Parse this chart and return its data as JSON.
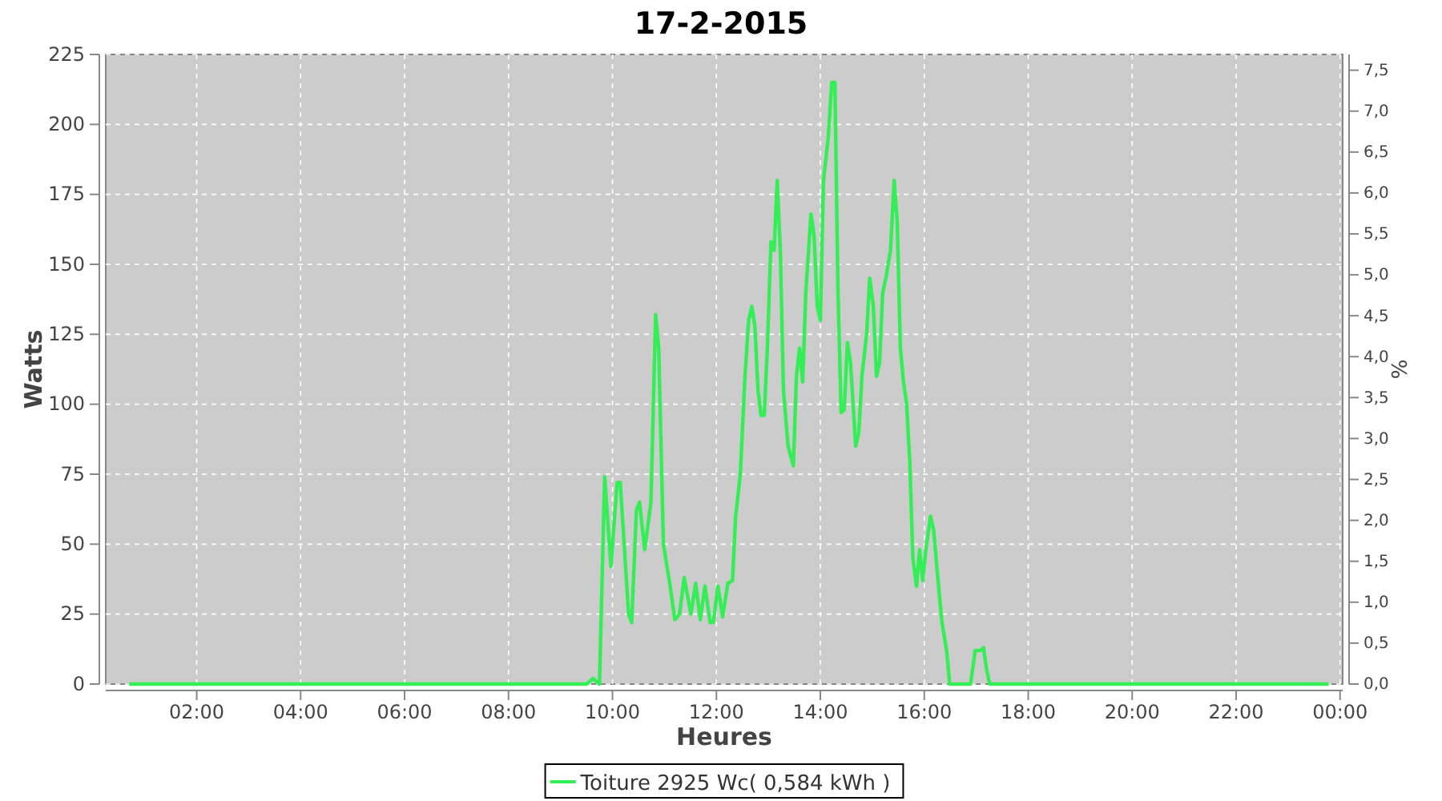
{
  "chart_data": {
    "type": "line",
    "title": "17-2-2015",
    "xlabel": "Heures",
    "ylabel": "Watts",
    "y2label": "%",
    "xlim": [
      0.25,
      24.05
    ],
    "xticks": [
      {
        "value": 2,
        "label": "02:00"
      },
      {
        "value": 4,
        "label": "04:00"
      },
      {
        "value": 6,
        "label": "06:00"
      },
      {
        "value": 8,
        "label": "08:00"
      },
      {
        "value": 10,
        "label": "10:00"
      },
      {
        "value": 12,
        "label": "12:00"
      },
      {
        "value": 14,
        "label": "14:00"
      },
      {
        "value": 16,
        "label": "16:00"
      },
      {
        "value": 18,
        "label": "18:00"
      },
      {
        "value": 20,
        "label": "20:00"
      },
      {
        "value": 22,
        "label": "22:00"
      },
      {
        "value": 24,
        "label": "00:00"
      }
    ],
    "ylim": [
      0,
      225
    ],
    "yticks": [
      0,
      25,
      50,
      75,
      100,
      125,
      150,
      175,
      200,
      225
    ],
    "y2lim": [
      0,
      7.692
    ],
    "y2ticks": [
      {
        "value": 0,
        "label": "0,0"
      },
      {
        "value": 0.5,
        "label": "0,5"
      },
      {
        "value": 1,
        "label": "1,0"
      },
      {
        "value": 1.5,
        "label": "1,5"
      },
      {
        "value": 2,
        "label": "2,0"
      },
      {
        "value": 2.5,
        "label": "2,5"
      },
      {
        "value": 3,
        "label": "3,0"
      },
      {
        "value": 3.5,
        "label": "3,5"
      },
      {
        "value": 4,
        "label": "4,0"
      },
      {
        "value": 4.5,
        "label": "4,5"
      },
      {
        "value": 5,
        "label": "5,0"
      },
      {
        "value": 5.5,
        "label": "5,5"
      },
      {
        "value": 6,
        "label": "6,0"
      },
      {
        "value": 6.5,
        "label": "6,5"
      },
      {
        "value": 7,
        "label": "7,0"
      },
      {
        "value": 7.5,
        "label": "7,5"
      }
    ],
    "grid": true,
    "legend": "bottom",
    "marker": "none",
    "line_style": "solid",
    "series": [
      {
        "name": "Toiture 2925 Wc( 0,584 kWh )",
        "color": "#33ee55",
        "x": [
          0.7,
          9.5,
          9.63,
          9.75,
          9.85,
          9.97,
          10.09,
          10.15,
          10.31,
          10.37,
          10.46,
          10.52,
          10.62,
          10.74,
          10.83,
          10.89,
          10.98,
          11.11,
          11.2,
          11.29,
          11.38,
          11.51,
          11.6,
          11.69,
          11.78,
          11.88,
          11.94,
          12.03,
          12.12,
          12.22,
          12.31,
          12.37,
          12.46,
          12.55,
          12.62,
          12.68,
          12.74,
          12.8,
          12.86,
          12.92,
          12.98,
          13.05,
          13.11,
          13.17,
          13.23,
          13.29,
          13.38,
          13.48,
          13.54,
          13.6,
          13.66,
          13.72,
          13.82,
          13.88,
          13.94,
          14.0,
          14.06,
          14.15,
          14.22,
          14.28,
          14.34,
          14.4,
          14.46,
          14.52,
          14.58,
          14.68,
          14.74,
          14.8,
          14.89,
          14.95,
          15.02,
          15.08,
          15.14,
          15.2,
          15.26,
          15.35,
          15.42,
          15.48,
          15.54,
          15.6,
          15.66,
          15.72,
          15.78,
          15.85,
          15.91,
          15.97,
          16.03,
          16.12,
          16.18,
          16.25,
          16.34,
          16.43,
          16.49,
          16.89,
          16.98,
          17.08,
          17.14,
          17.2,
          17.26,
          23.78
        ],
        "values": [
          0,
          0,
          2,
          0,
          74,
          42,
          72,
          72,
          25,
          22,
          62,
          65,
          48,
          65,
          132,
          120,
          50,
          35,
          23,
          25,
          38,
          25,
          36,
          23,
          35,
          22,
          22,
          35,
          24,
          36,
          37,
          60,
          75,
          110,
          130,
          135,
          128,
          105,
          96,
          96,
          120,
          158,
          155,
          180,
          155,
          105,
          85,
          78,
          110,
          120,
          108,
          140,
          168,
          160,
          135,
          130,
          180,
          195,
          215,
          215,
          140,
          97,
          98,
          122,
          115,
          85,
          90,
          110,
          125,
          145,
          135,
          110,
          115,
          140,
          145,
          155,
          180,
          165,
          120,
          108,
          100,
          80,
          45,
          35,
          48,
          37,
          48,
          60,
          55,
          40,
          22,
          12,
          0,
          0,
          12,
          12,
          13,
          5,
          0,
          0
        ]
      }
    ]
  }
}
